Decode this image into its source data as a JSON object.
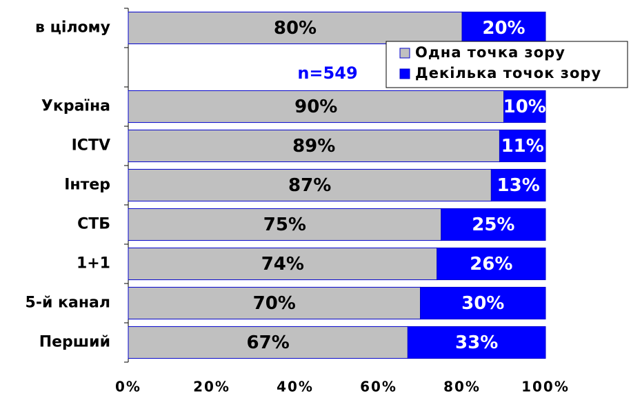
{
  "chart_data": {
    "type": "stacked-barh",
    "annotations": [
      "n=549"
    ],
    "categories": [
      "в цілому",
      null,
      "Україна",
      "ICTV",
      "Інтер",
      "СТБ",
      "1+1",
      "5-й канал",
      "Перший"
    ],
    "series": [
      {
        "name": "Одна точка зору",
        "color": "#c0c0c0",
        "values": [
          80,
          null,
          90,
          89,
          87,
          75,
          74,
          70,
          67
        ],
        "value_labels": [
          "80%",
          null,
          "90%",
          "89%",
          "87%",
          "75%",
          "74%",
          "70%",
          "67%"
        ]
      },
      {
        "name": "Декілька точок зору",
        "color": "#0000ff",
        "values": [
          20,
          null,
          10,
          11,
          13,
          25,
          26,
          30,
          33
        ],
        "value_labels": [
          "20%",
          null,
          "10%",
          "11%",
          "13%",
          "25%",
          "26%",
          "30%",
          "33%"
        ]
      }
    ],
    "xlim": [
      0,
      100
    ],
    "xticks": [
      {
        "value": 0,
        "label": "0%"
      },
      {
        "value": 20,
        "label": "20%"
      },
      {
        "value": 40,
        "label": "40%"
      },
      {
        "value": 60,
        "label": "60%"
      },
      {
        "value": 80,
        "label": "80%"
      },
      {
        "value": 100,
        "label": "100%"
      }
    ],
    "legend": "upper right"
  }
}
